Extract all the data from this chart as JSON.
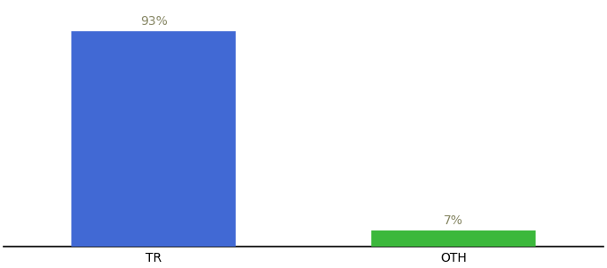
{
  "categories": [
    "TR",
    "OTH"
  ],
  "values": [
    93,
    7
  ],
  "bar_colors": [
    "#4169d4",
    "#3cb83c"
  ],
  "labels": [
    "93%",
    "7%"
  ],
  "background_color": "#ffffff",
  "ylim": [
    0,
    105
  ],
  "bar_width": 0.55,
  "label_fontsize": 10,
  "tick_fontsize": 10,
  "label_color": "#888866"
}
